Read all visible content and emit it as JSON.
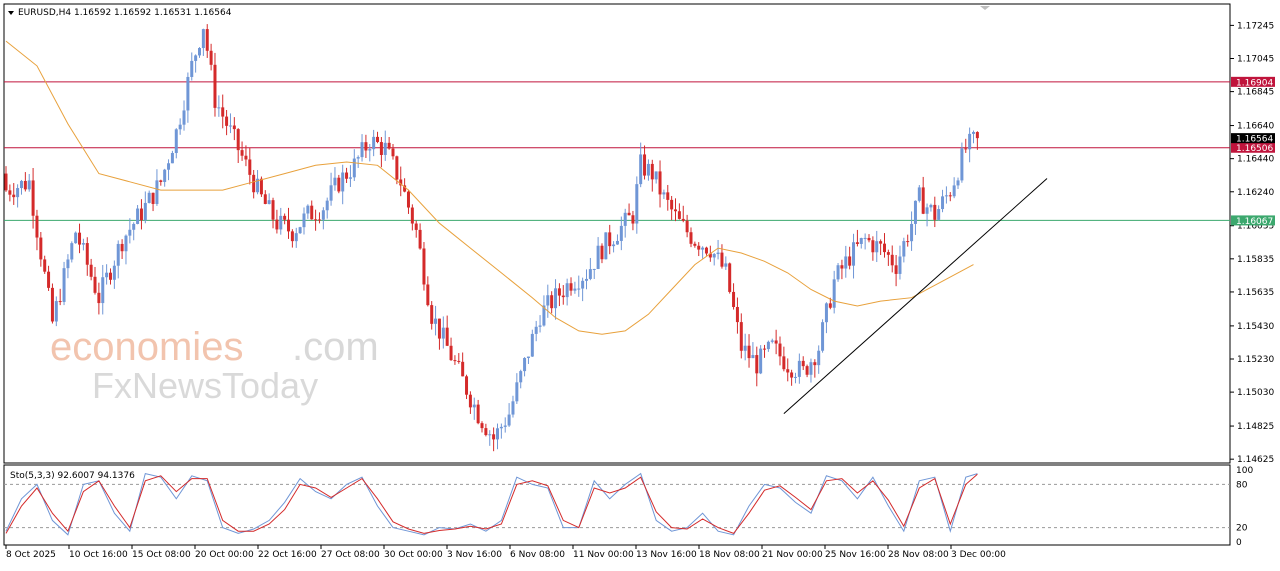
{
  "header": {
    "symbol_line": "EURUSD,H4  1.16592 1.16592 1.16531 1.16564"
  },
  "watermark": {
    "part1": "economies",
    "part2": ".com",
    "part3": "FxNewsToday"
  },
  "colors": {
    "bull": "#6f96d6",
    "bear": "#d42a2a",
    "ma": "#e8a13c",
    "resistance": "#c0143c",
    "support": "#3ca86e",
    "price_tag": "#000000",
    "stoch_main": "#6f96d6",
    "stoch_signal": "#d42a2a"
  },
  "chart_data": {
    "type": "candlestick",
    "symbol": "EURUSD",
    "timeframe": "H4",
    "ylim": [
      1.1462,
      1.1735
    ],
    "y_ticks": [
      "1.17245",
      "1.17045",
      "1.16845",
      "1.16640",
      "1.16440",
      "1.16240",
      "1.16035",
      "1.15835",
      "1.15635",
      "1.15430",
      "1.15230",
      "1.15030",
      "1.14825",
      "1.14625"
    ],
    "x_labels": [
      "8 Oct 2025",
      "10 Oct 16:00",
      "15 Oct 08:00",
      "20 Oct 00:00",
      "22 Oct 16:00",
      "27 Oct 08:00",
      "30 Oct 00:00",
      "3 Nov 16:00",
      "6 Nov 08:00",
      "11 Nov 00:00",
      "13 Nov 16:00",
      "18 Nov 08:00",
      "21 Nov 00:00",
      "25 Nov 16:00",
      "28 Nov 08:00",
      "3 Dec 00:00"
    ],
    "price_levels": [
      {
        "price": 1.16904,
        "label": "1.16904",
        "color": "#c0143c"
      },
      {
        "price": 1.16506,
        "label": "1.16506",
        "color": "#c0143c"
      },
      {
        "price": 1.16067,
        "label": "1.16067",
        "color": "#3ca86e"
      }
    ],
    "current_price": {
      "price": 1.16564,
      "label": "1.16564"
    },
    "close_path": [
      [
        0,
        1.1625
      ],
      [
        6,
        1.163
      ],
      [
        12,
        1.1545
      ],
      [
        18,
        1.16
      ],
      [
        24,
        1.156
      ],
      [
        30,
        1.1595
      ],
      [
        36,
        1.1615
      ],
      [
        40,
        1.163
      ],
      [
        44,
        1.166
      ],
      [
        48,
        1.17
      ],
      [
        51,
        1.1725
      ],
      [
        54,
        1.168
      ],
      [
        58,
        1.166
      ],
      [
        62,
        1.164
      ],
      [
        66,
        1.162
      ],
      [
        70,
        1.1605
      ],
      [
        74,
        1.16
      ],
      [
        78,
        1.161
      ],
      [
        82,
        1.1615
      ],
      [
        86,
        1.163
      ],
      [
        90,
        1.164
      ],
      [
        94,
        1.1655
      ],
      [
        98,
        1.165
      ],
      [
        102,
        1.163
      ],
      [
        106,
        1.16
      ],
      [
        110,
        1.155
      ],
      [
        114,
        1.153
      ],
      [
        118,
        1.151
      ],
      [
        122,
        1.149
      ],
      [
        126,
        1.1475
      ],
      [
        130,
        1.149
      ],
      [
        134,
        1.152
      ],
      [
        138,
        1.155
      ],
      [
        142,
        1.156
      ],
      [
        146,
        1.157
      ],
      [
        150,
        1.1575
      ],
      [
        154,
        1.159
      ],
      [
        158,
        1.16
      ],
      [
        162,
        1.161
      ],
      [
        164,
        1.164
      ],
      [
        167,
        1.1635
      ],
      [
        170,
        1.162
      ],
      [
        174,
        1.1605
      ],
      [
        178,
        1.1595
      ],
      [
        182,
        1.159
      ],
      [
        186,
        1.1575
      ],
      [
        190,
        1.153
      ],
      [
        194,
        1.152
      ],
      [
        198,
        1.153
      ],
      [
        202,
        1.152
      ],
      [
        206,
        1.1515
      ],
      [
        210,
        1.153
      ],
      [
        214,
        1.157
      ],
      [
        218,
        1.1585
      ],
      [
        222,
        1.1595
      ],
      [
        226,
        1.159
      ],
      [
        230,
        1.158
      ],
      [
        234,
        1.1605
      ],
      [
        236,
        1.162
      ],
      [
        240,
        1.161
      ],
      [
        244,
        1.1625
      ],
      [
        248,
        1.165
      ],
      [
        251,
        1.16564
      ]
    ],
    "ma_path": [
      [
        0,
        1.1715
      ],
      [
        8,
        1.17
      ],
      [
        16,
        1.1665
      ],
      [
        24,
        1.1635
      ],
      [
        32,
        1.163
      ],
      [
        40,
        1.1625
      ],
      [
        48,
        1.1625
      ],
      [
        56,
        1.1625
      ],
      [
        64,
        1.163
      ],
      [
        72,
        1.1635
      ],
      [
        80,
        1.164
      ],
      [
        88,
        1.1642
      ],
      [
        96,
        1.164
      ],
      [
        104,
        1.1625
      ],
      [
        112,
        1.1605
      ],
      [
        120,
        1.159
      ],
      [
        128,
        1.1575
      ],
      [
        136,
        1.156
      ],
      [
        142,
        1.1548
      ],
      [
        148,
        1.154
      ],
      [
        154,
        1.1538
      ],
      [
        160,
        1.154
      ],
      [
        166,
        1.155
      ],
      [
        172,
        1.1565
      ],
      [
        178,
        1.158
      ],
      [
        184,
        1.159
      ],
      [
        190,
        1.1587
      ],
      [
        196,
        1.1582
      ],
      [
        202,
        1.1575
      ],
      [
        208,
        1.1565
      ],
      [
        214,
        1.1558
      ],
      [
        220,
        1.1555
      ],
      [
        226,
        1.1558
      ],
      [
        234,
        1.156
      ],
      [
        242,
        1.157
      ],
      [
        250,
        1.158
      ]
    ],
    "trendline": {
      "from": [
        201,
        1.149
      ],
      "to": [
        269,
        1.1632
      ]
    },
    "indicator": {
      "label": "Sto(5,3,3) 92.6007 94.1376",
      "main_name": "92.6007",
      "signal_name": "94.1376",
      "ylim": [
        0,
        100
      ],
      "levels": [
        20,
        80
      ],
      "y_ticks": [
        "100",
        "80",
        "20",
        "0"
      ],
      "k_path": [
        [
          0,
          15
        ],
        [
          4,
          60
        ],
        [
          8,
          80
        ],
        [
          12,
          30
        ],
        [
          16,
          10
        ],
        [
          20,
          80
        ],
        [
          24,
          85
        ],
        [
          28,
          40
        ],
        [
          32,
          15
        ],
        [
          36,
          95
        ],
        [
          40,
          90
        ],
        [
          44,
          60
        ],
        [
          48,
          92
        ],
        [
          52,
          85
        ],
        [
          56,
          20
        ],
        [
          60,
          12
        ],
        [
          64,
          18
        ],
        [
          68,
          30
        ],
        [
          72,
          55
        ],
        [
          76,
          88
        ],
        [
          80,
          70
        ],
        [
          84,
          60
        ],
        [
          88,
          80
        ],
        [
          92,
          90
        ],
        [
          96,
          50
        ],
        [
          100,
          20
        ],
        [
          104,
          15
        ],
        [
          108,
          10
        ],
        [
          112,
          20
        ],
        [
          116,
          18
        ],
        [
          120,
          25
        ],
        [
          124,
          15
        ],
        [
          128,
          30
        ],
        [
          132,
          90
        ],
        [
          136,
          80
        ],
        [
          140,
          75
        ],
        [
          144,
          20
        ],
        [
          148,
          20
        ],
        [
          152,
          85
        ],
        [
          156,
          60
        ],
        [
          160,
          80
        ],
        [
          164,
          95
        ],
        [
          168,
          30
        ],
        [
          172,
          15
        ],
        [
          176,
          20
        ],
        [
          180,
          40
        ],
        [
          184,
          15
        ],
        [
          188,
          10
        ],
        [
          192,
          50
        ],
        [
          196,
          80
        ],
        [
          200,
          75
        ],
        [
          204,
          55
        ],
        [
          208,
          40
        ],
        [
          212,
          92
        ],
        [
          216,
          85
        ],
        [
          220,
          60
        ],
        [
          224,
          90
        ],
        [
          228,
          50
        ],
        [
          232,
          15
        ],
        [
          236,
          85
        ],
        [
          240,
          90
        ],
        [
          244,
          15
        ],
        [
          248,
          90
        ],
        [
          251,
          95
        ]
      ],
      "d_path": [
        [
          0,
          12
        ],
        [
          4,
          50
        ],
        [
          8,
          75
        ],
        [
          12,
          40
        ],
        [
          16,
          15
        ],
        [
          20,
          70
        ],
        [
          24,
          85
        ],
        [
          28,
          50
        ],
        [
          32,
          20
        ],
        [
          36,
          85
        ],
        [
          40,
          92
        ],
        [
          44,
          70
        ],
        [
          48,
          88
        ],
        [
          52,
          88
        ],
        [
          56,
          30
        ],
        [
          60,
          15
        ],
        [
          64,
          15
        ],
        [
          68,
          25
        ],
        [
          72,
          45
        ],
        [
          76,
          80
        ],
        [
          80,
          75
        ],
        [
          84,
          62
        ],
        [
          88,
          75
        ],
        [
          92,
          88
        ],
        [
          96,
          60
        ],
        [
          100,
          28
        ],
        [
          104,
          18
        ],
        [
          108,
          12
        ],
        [
          112,
          16
        ],
        [
          116,
          18
        ],
        [
          120,
          22
        ],
        [
          124,
          18
        ],
        [
          128,
          25
        ],
        [
          132,
          80
        ],
        [
          136,
          85
        ],
        [
          140,
          78
        ],
        [
          144,
          30
        ],
        [
          148,
          20
        ],
        [
          152,
          75
        ],
        [
          156,
          68
        ],
        [
          160,
          75
        ],
        [
          164,
          90
        ],
        [
          168,
          42
        ],
        [
          172,
          20
        ],
        [
          176,
          18
        ],
        [
          180,
          32
        ],
        [
          184,
          20
        ],
        [
          188,
          12
        ],
        [
          192,
          40
        ],
        [
          196,
          72
        ],
        [
          200,
          78
        ],
        [
          204,
          62
        ],
        [
          208,
          45
        ],
        [
          212,
          85
        ],
        [
          216,
          88
        ],
        [
          220,
          68
        ],
        [
          224,
          85
        ],
        [
          228,
          58
        ],
        [
          232,
          22
        ],
        [
          236,
          75
        ],
        [
          240,
          88
        ],
        [
          244,
          25
        ],
        [
          248,
          80
        ],
        [
          251,
          94
        ]
      ]
    }
  }
}
